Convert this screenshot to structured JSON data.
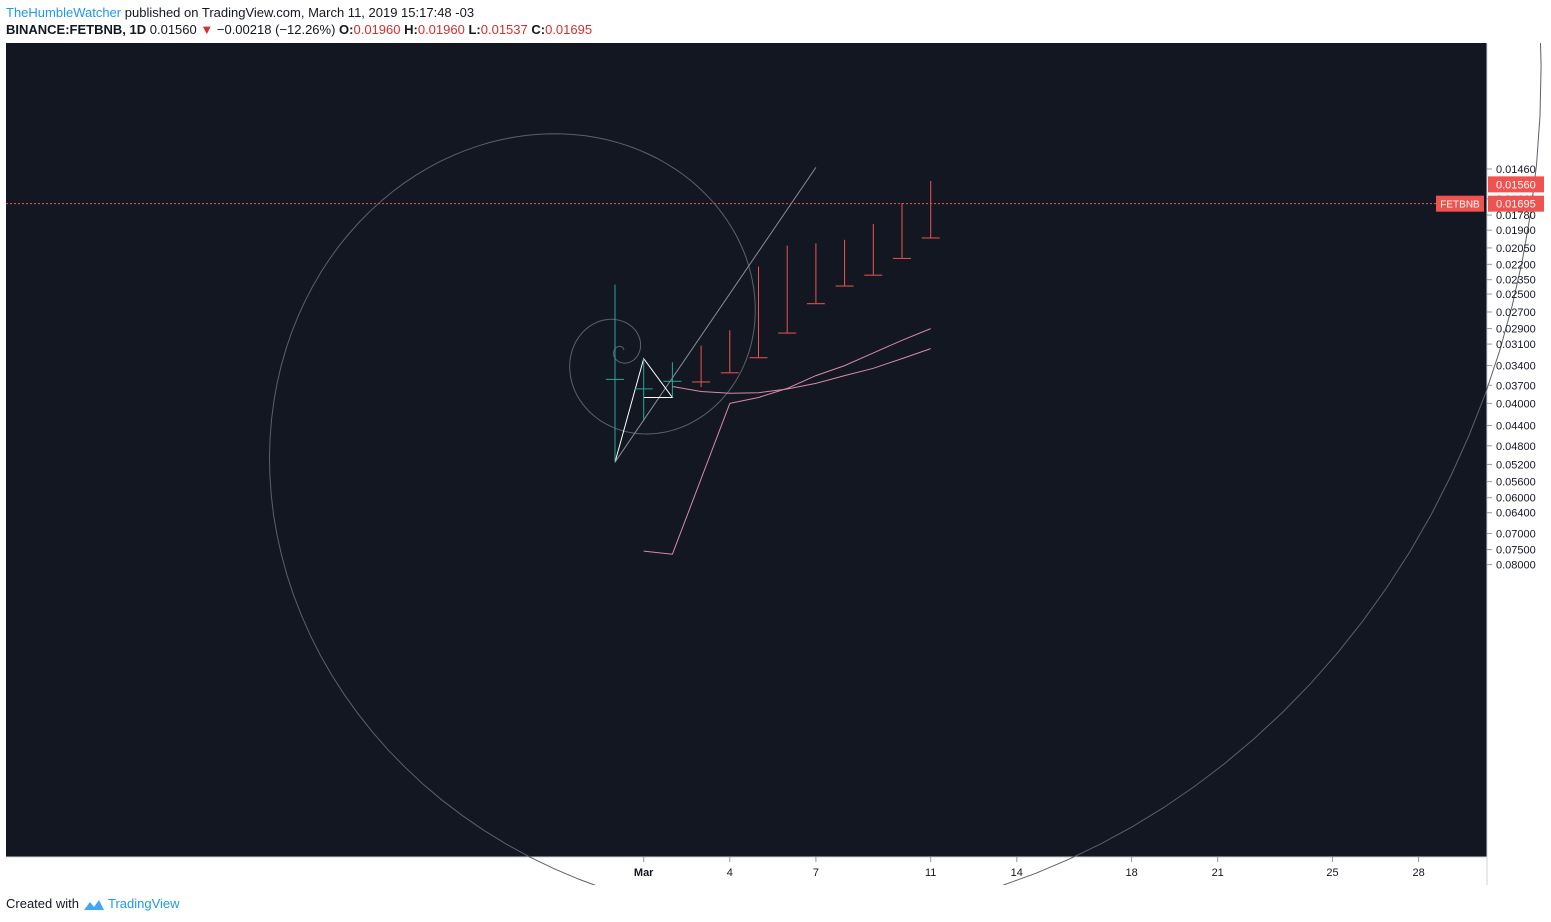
{
  "header": {
    "author": "TheHumbleWatcher",
    "published_text": "published on TradingView.com, March 11, 2019 15:17:48 -03",
    "symbol": "BINANCE:FETBNB, 1D",
    "last": "0.01560",
    "change": "−0.00218 (−12.26%)",
    "o_label": "O:",
    "o_value": "0.01960",
    "h_label": "H:",
    "h_value": "0.01960",
    "l_label": "L:",
    "l_value": "0.01537",
    "c_label": "C:",
    "c_value": "0.01695",
    "down_arrow": "▼"
  },
  "footer": {
    "created_with": "Created with",
    "brand": "TradingView"
  },
  "colors": {
    "background": "#131722",
    "up": "#26a69a",
    "down": "#ef5350",
    "ma": "#d88aa8",
    "spiral": "#5d606b",
    "zigzag": "#ffffff",
    "axis_text": "#131722",
    "price_line": "#ef5350"
  },
  "chart_data": {
    "type": "candlestick",
    "symbol": "BINANCE:FETBNB",
    "interval": "1D",
    "x_ticks": [
      {
        "label": "Mar",
        "day": 1
      },
      {
        "label": "4",
        "day": 4
      },
      {
        "label": "7",
        "day": 7
      },
      {
        "label": "11",
        "day": 11
      },
      {
        "label": "14",
        "day": 14
      },
      {
        "label": "18",
        "day": 18
      },
      {
        "label": "21",
        "day": 21
      },
      {
        "label": "25",
        "day": 25
      },
      {
        "label": "28",
        "day": 28
      }
    ],
    "y_ticks": [
      "0.08000",
      "0.07500",
      "0.07000",
      "0.06400",
      "0.06000",
      "0.05600",
      "0.05200",
      "0.04800",
      "0.04400",
      "0.04000",
      "0.03700",
      "0.03400",
      "0.03100",
      "0.02900",
      "0.02700",
      "0.02500",
      "0.02350",
      "0.02200",
      "0.02050",
      "0.01900",
      "0.01780",
      "0.01660",
      "0.01460"
    ],
    "candles": [
      {
        "day": 0,
        "open": 0.0346,
        "high": 0.0515,
        "low": 0.024,
        "close": 0.036
      },
      {
        "day": 1,
        "open": 0.0352,
        "high": 0.0432,
        "low": 0.033,
        "close": 0.0375
      },
      {
        "day": 2,
        "open": 0.0363,
        "high": 0.039,
        "low": 0.0335,
        "close": 0.0363
      },
      {
        "day": 3,
        "open": 0.0364,
        "high": 0.0373,
        "low": 0.0312,
        "close": 0.0334
      },
      {
        "day": 4,
        "open": 0.035,
        "high": 0.035,
        "low": 0.0292,
        "close": 0.031
      },
      {
        "day": 5,
        "open": 0.0328,
        "high": 0.0328,
        "low": 0.0222,
        "close": 0.026
      },
      {
        "day": 6,
        "open": 0.0295,
        "high": 0.0295,
        "low": 0.0203,
        "close": 0.0225
      },
      {
        "day": 7,
        "open": 0.026,
        "high": 0.026,
        "low": 0.0201,
        "close": 0.0225
      },
      {
        "day": 8,
        "open": 0.0241,
        "high": 0.0241,
        "low": 0.0198,
        "close": 0.0218
      },
      {
        "day": 9,
        "open": 0.023,
        "high": 0.023,
        "low": 0.0185,
        "close": 0.0196
      },
      {
        "day": 10,
        "open": 0.0214,
        "high": 0.0214,
        "low": 0.0169,
        "close": 0.018
      },
      {
        "day": 11,
        "open": 0.0196,
        "high": 0.0196,
        "low": 0.01537,
        "close": 0.01695
      }
    ],
    "ma_lines": [
      {
        "points": [
          [
            2,
            0.0372
          ],
          [
            3,
            0.038
          ],
          [
            4,
            0.0383
          ],
          [
            5,
            0.0382
          ],
          [
            6,
            0.0376
          ],
          [
            7,
            0.0367
          ],
          [
            8,
            0.0355
          ],
          [
            9,
            0.0344
          ],
          [
            10,
            0.033
          ],
          [
            11,
            0.0316
          ]
        ]
      },
      {
        "points": [
          [
            4,
            0.04
          ],
          [
            5,
            0.039
          ],
          [
            6,
            0.0375
          ],
          [
            7,
            0.0355
          ],
          [
            8,
            0.034
          ],
          [
            9,
            0.0322
          ],
          [
            10,
            0.0305
          ],
          [
            11,
            0.029
          ]
        ]
      },
      {
        "points": [
          [
            1,
            0.0755
          ],
          [
            2,
            0.0765
          ],
          [
            4,
            0.04
          ]
        ]
      }
    ],
    "zigzag": [
      [
        0,
        0.0515
      ],
      [
        1,
        0.033
      ],
      [
        2,
        0.039
      ],
      [
        1,
        0.039
      ]
    ],
    "trendline": [
      [
        0,
        0.0515
      ],
      [
        7,
        0.0145
      ]
    ],
    "current_price_line": 0.01695,
    "price_labels": [
      {
        "text": "FETBNB",
        "value": "0.01695",
        "price": 0.01695
      },
      {
        "value": "0.01560",
        "price": 0.0156
      }
    ]
  }
}
